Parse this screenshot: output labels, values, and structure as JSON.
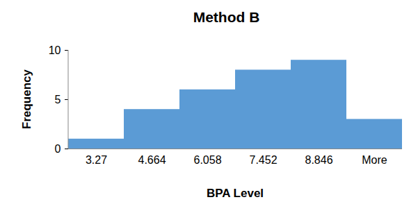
{
  "chart_data": {
    "type": "bar",
    "title": "Method B",
    "x_label": "BPA Level",
    "y_label": "Frequency",
    "categories": [
      "3.27",
      "4.664",
      "6.058",
      "7.452",
      "8.846",
      "More"
    ],
    "values": [
      1,
      4,
      6,
      8,
      9,
      3
    ],
    "color": "#5b9bd5",
    "ylim": [
      0,
      10
    ],
    "yticks": [
      0,
      5,
      10
    ],
    "grid": false
  }
}
